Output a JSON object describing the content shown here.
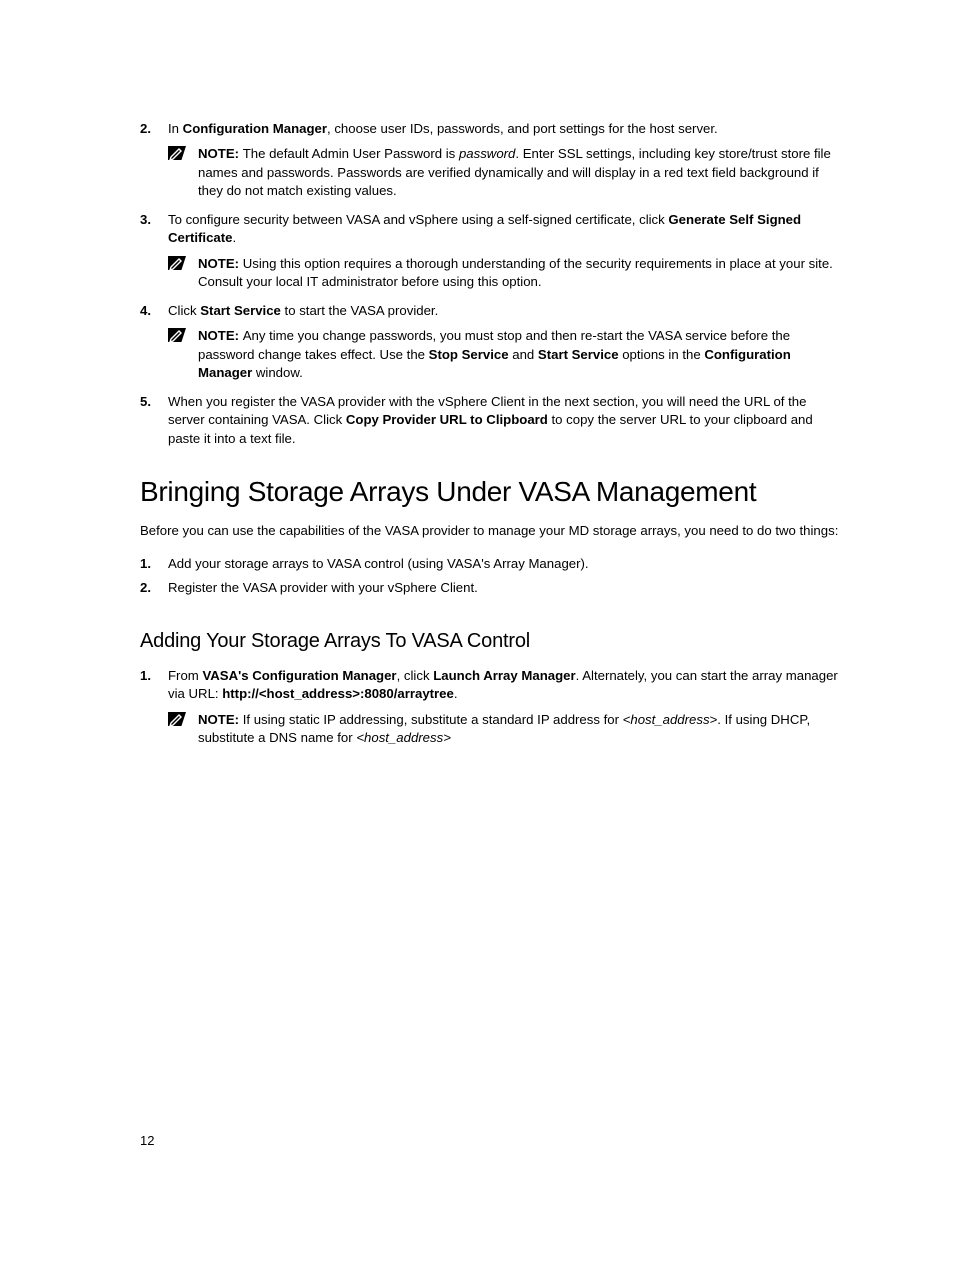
{
  "colors": {
    "text": "#000000",
    "background": "#ffffff",
    "icon_fill": "#000000",
    "icon_pencil_stroke": "#ffffff"
  },
  "typography": {
    "body_font": "Arial",
    "body_size_pt": 10,
    "h1_font": "Arial Narrow",
    "h1_size_pt": 21,
    "h2_size_pt": 15
  },
  "steps_top": [
    {
      "num": "2.",
      "segments": [
        {
          "t": "In "
        },
        {
          "t": "Configuration Manager",
          "b": true
        },
        {
          "t": ", choose user IDs, passwords, and port settings for the host server."
        }
      ],
      "note": {
        "segments": [
          {
            "t": "NOTE: ",
            "b": true
          },
          {
            "t": "The default Admin User Password is "
          },
          {
            "t": "password",
            "i": true
          },
          {
            "t": ". Enter SSL settings, including key store/trust store file names and passwords. Passwords are verified dynamically and will display in a red text field background if they do not match existing values."
          }
        ]
      }
    },
    {
      "num": "3.",
      "segments": [
        {
          "t": "To configure security between VASA and vSphere using a self-signed certificate, click "
        },
        {
          "t": "Generate Self Signed Certificate",
          "b": true
        },
        {
          "t": "."
        }
      ],
      "note": {
        "segments": [
          {
            "t": "NOTE: ",
            "b": true
          },
          {
            "t": "Using this option requires a thorough understanding of the security requirements in place at your site. Consult your local IT administrator before using this option."
          }
        ]
      }
    },
    {
      "num": "4.",
      "segments": [
        {
          "t": "Click "
        },
        {
          "t": "Start Service",
          "b": true
        },
        {
          "t": " to start the VASA provider."
        }
      ],
      "note": {
        "segments": [
          {
            "t": "NOTE: ",
            "b": true
          },
          {
            "t": "Any time you change passwords, you must stop and then re-start the VASA service before the password change takes effect. Use the "
          },
          {
            "t": "Stop Service",
            "b": true
          },
          {
            "t": " and "
          },
          {
            "t": "Start Service",
            "b": true
          },
          {
            "t": " options in the "
          },
          {
            "t": "Configuration Manager",
            "b": true
          },
          {
            "t": " window."
          }
        ]
      }
    },
    {
      "num": "5.",
      "segments": [
        {
          "t": "When you register the VASA provider with the vSphere Client in the next section, you will need the URL of the server containing VASA. Click "
        },
        {
          "t": "Copy Provider URL to Clipboard",
          "b": true
        },
        {
          "t": " to copy the server URL to your clipboard and paste it into a text file."
        }
      ]
    }
  ],
  "section": {
    "title": "Bringing Storage Arrays Under VASA Management",
    "intro": "Before you can use the capabilities of the VASA provider to manage your MD storage arrays, you need to do two things:",
    "list": [
      {
        "num": "1.",
        "segments": [
          {
            "t": "Add your storage arrays to VASA control (using VASA's Array Manager)."
          }
        ]
      },
      {
        "num": "2.",
        "segments": [
          {
            "t": "Register the VASA provider with your vSphere Client."
          }
        ]
      }
    ]
  },
  "subsection": {
    "title": "Adding Your Storage Arrays To VASA Control",
    "list": [
      {
        "num": "1.",
        "segments": [
          {
            "t": "From "
          },
          {
            "t": "VASA's Configuration Manager",
            "b": true
          },
          {
            "t": ", click "
          },
          {
            "t": "Launch Array Manager",
            "b": true
          },
          {
            "t": ". Alternately, you can start the array manager via URL: "
          },
          {
            "t": "http://<host_address>:8080/arraytree",
            "b": true
          },
          {
            "t": "."
          }
        ],
        "note": {
          "segments": [
            {
              "t": "NOTE: ",
              "b": true
            },
            {
              "t": "If using static IP addressing, substitute a standard IP address for "
            },
            {
              "t": "<host_address>",
              "i": true
            },
            {
              "t": ". If using DHCP, substitute a DNS name for "
            },
            {
              "t": "<host_address>",
              "i": true
            }
          ]
        }
      }
    ]
  },
  "page_number": "12"
}
